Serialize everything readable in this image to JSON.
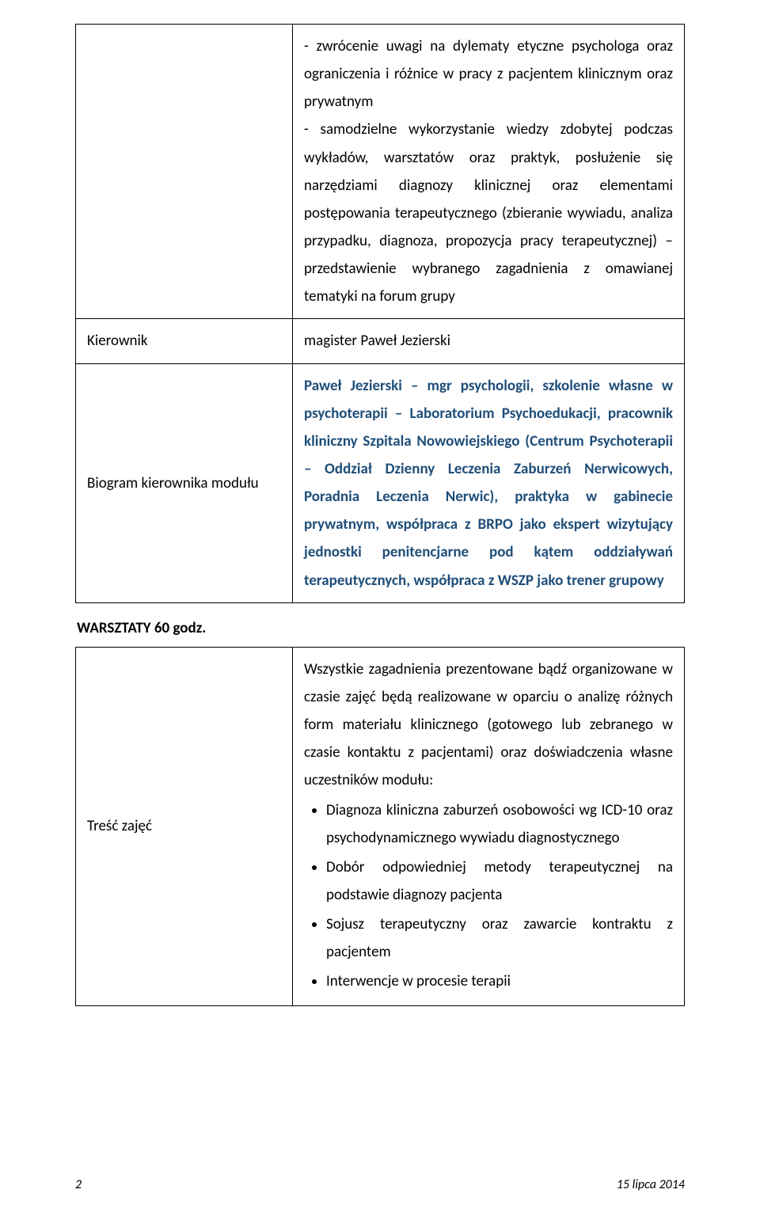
{
  "table1": {
    "row1_right_p1": "- zwrócenie uwagi na dylematy etyczne psychologa oraz ograniczenia i różnice w pracy z pacjentem klinicznym oraz prywatnym",
    "row1_right_p2": "- samodzielne wykorzystanie wiedzy zdobytej podczas wykładów, warsztatów oraz praktyk, posłużenie się narzędziami diagnozy klinicznej oraz elementami postępowania terapeutycznego (zbieranie wywiadu, analiza przypadku, diagnoza, propozycja pracy terapeutycznej) – przedstawienie wybranego zagadnienia z omawianej tematyki na forum grupy",
    "row2_left": "Kierownik",
    "row2_right": "magister Paweł Jezierski",
    "row3_left": "Biogram kierownika modułu",
    "row3_right": "Paweł Jezierski – mgr psychologii, szkolenie własne w psychoterapii – Laboratorium Psychoedukacji, pracownik kliniczny Szpitala Nowowiejskiego (Centrum Psychoterapii – Oddział Dzienny Leczenia Zaburzeń Nerwicowych, Poradnia Leczenia Nerwic), praktyka w gabinecie prywatnym, współpraca z BRPO jako ekspert wizytujący jednostki penitencjarne pod kątem oddziaływań terapeutycznych, współpraca z WSZP jako trener grupowy"
  },
  "section_heading": "WARSZTATY 60 godz.",
  "table2": {
    "left": "Treść zajęć",
    "right_intro": "Wszystkie zagadnienia prezentowane bądź organizowane w czasie zajęć będą realizowane w oparciu o analizę różnych form materiału klinicznego (gotowego lub zebranego w czasie kontaktu z pacjentami) oraz doświadczenia własne uczestników modułu:",
    "bullets": [
      "Diagnoza kliniczna zaburzeń osobowości wg ICD-10 oraz psychodynamicznego wywiadu diagnostycznego",
      "Dobór odpowiedniej metody terapeutycznej na podstawie diagnozy pacjenta",
      "Sojusz terapeutyczny oraz zawarcie kontraktu z pacjentem",
      "Interwencje w procesie terapii"
    ]
  },
  "footer": {
    "page": "2",
    "date": "15 lipca 2014"
  }
}
